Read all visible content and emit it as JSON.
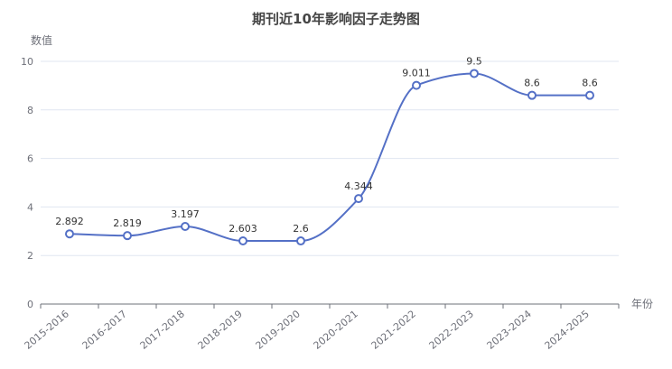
{
  "chart_data": {
    "type": "line",
    "title": "期刊近10年影响因子走势图",
    "xlabel": "年份",
    "ylabel": "数值",
    "categories": [
      "2015-2016",
      "2016-2017",
      "2017-2018",
      "2018-2019",
      "2019-2020",
      "2020-2021",
      "2021-2022",
      "2022-2023",
      "2023-2024",
      "2024-2025"
    ],
    "values": [
      2.892,
      2.819,
      3.197,
      2.603,
      2.6,
      4.344,
      9.011,
      9.5,
      8.6,
      8.6
    ],
    "value_labels": [
      "2.892",
      "2.819",
      "3.197",
      "2.603",
      "2.6",
      "4.344",
      "9.011",
      "9.5",
      "8.6",
      "8.6"
    ],
    "ylim": [
      0,
      10
    ],
    "yticks": [
      "0",
      "2",
      "4",
      "6",
      "8",
      "10"
    ],
    "grid": true,
    "smooth": true,
    "line_color": "#5470c6"
  }
}
